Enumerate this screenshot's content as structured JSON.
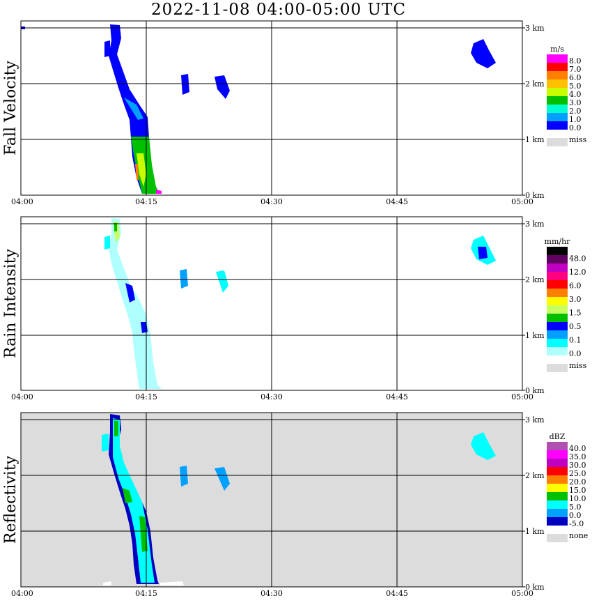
{
  "title": "2022-11-08   04:00-05:00 UTC",
  "colors": {
    "background": "#ffffff",
    "gridline": "#000000",
    "missing": "#dcdcdc"
  },
  "chart_data": [
    {
      "type": "heatmap",
      "ylabel": "Fall Velocity",
      "xticks": [
        "04:00",
        "04:15",
        "04:30",
        "04:45",
        "05:00"
      ],
      "yticks": [
        "0 km",
        "1 km",
        "2 km",
        "3 km"
      ],
      "xlim_minutes": [
        0,
        60
      ],
      "ylim_km": [
        0,
        3.1
      ],
      "plot_background": "#ffffff",
      "legend": {
        "unit": "m/s",
        "labels": [
          "8.0",
          "7.0",
          "6.0",
          "5.0",
          "4.0",
          "3.0",
          "2.0",
          "1.0",
          "0.0"
        ],
        "colors": [
          "#ff00ff",
          "#ff0000",
          "#ff7f00",
          "#ffc000",
          "#c8ff00",
          "#00c000",
          "#00ffd0",
          "#00a0ff",
          "#0000ff"
        ],
        "missing_label": "miss"
      }
    },
    {
      "type": "heatmap",
      "ylabel": "Rain Intensity",
      "xticks": [
        "04:00",
        "04:15",
        "04:30",
        "04:45",
        "05:00"
      ],
      "yticks": [
        "0 km",
        "1 km",
        "2 km",
        "3 km"
      ],
      "xlim_minutes": [
        0,
        60
      ],
      "ylim_km": [
        0,
        3.1
      ],
      "plot_background": "#ffffff",
      "legend": {
        "unit": "mm/hr",
        "labels": [
          "48.0",
          "12.0",
          "6.0",
          "3.0",
          "1.5",
          "0.5",
          "0.1",
          "0.0"
        ],
        "colors": [
          "#000000",
          "#600060",
          "#c000c0",
          "#ff0080",
          "#ff0000",
          "#ff8000",
          "#ffff00",
          "#c8ff60",
          "#00c000",
          "#0000ff",
          "#00a0ff",
          "#00ffff",
          "#b0ffff"
        ],
        "missing_label": "miss"
      }
    },
    {
      "type": "heatmap",
      "ylabel": "Reflectivity",
      "xticks": [
        "04:00",
        "04:15",
        "04:30",
        "04:45",
        "05:00"
      ],
      "yticks": [
        "0 km",
        "1 km",
        "2 km",
        "3 km"
      ],
      "xlim_minutes": [
        0,
        60
      ],
      "ylim_km": [
        0,
        3.1
      ],
      "plot_background": "#dcdcdc",
      "legend": {
        "unit": "dBZ",
        "labels": [
          "40.0",
          "35.0",
          "30.0",
          "25.0",
          "20.0",
          "15.0",
          "10.0",
          "5.0",
          "0.0",
          "-5.0"
        ],
        "colors": [
          "#b050b0",
          "#ff00ff",
          "#c000c0",
          "#ff0000",
          "#ff8000",
          "#ffff00",
          "#00c000",
          "#00ffff",
          "#00a0ff",
          "#0000c0"
        ],
        "missing_label": "none"
      }
    }
  ]
}
